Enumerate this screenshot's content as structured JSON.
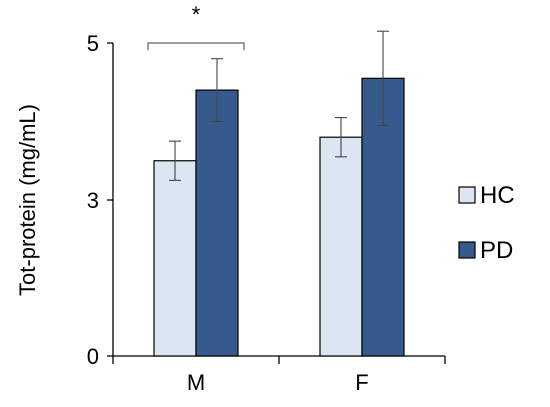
{
  "chart_data": {
    "type": "bar",
    "title": "",
    "xlabel": "",
    "ylabel": "Tot-protein (mg/mL)",
    "categories": [
      "M",
      "F"
    ],
    "yticks": [
      "0",
      "3",
      "5"
    ],
    "ylim": [
      0,
      5
    ],
    "grid": false,
    "legend_position": "right",
    "series": [
      {
        "name": "HC",
        "color": "#dce6f2",
        "values": [
          3.5,
          3.8
        ],
        "errors": [
          0.25,
          0.25
        ]
      },
      {
        "name": "PD",
        "color": "#375a8c",
        "values": [
          4.4,
          4.55
        ],
        "errors": [
          0.4,
          0.6
        ]
      }
    ],
    "annotations": [
      {
        "text": "*",
        "category": "M",
        "type": "significance-bracket"
      }
    ]
  }
}
